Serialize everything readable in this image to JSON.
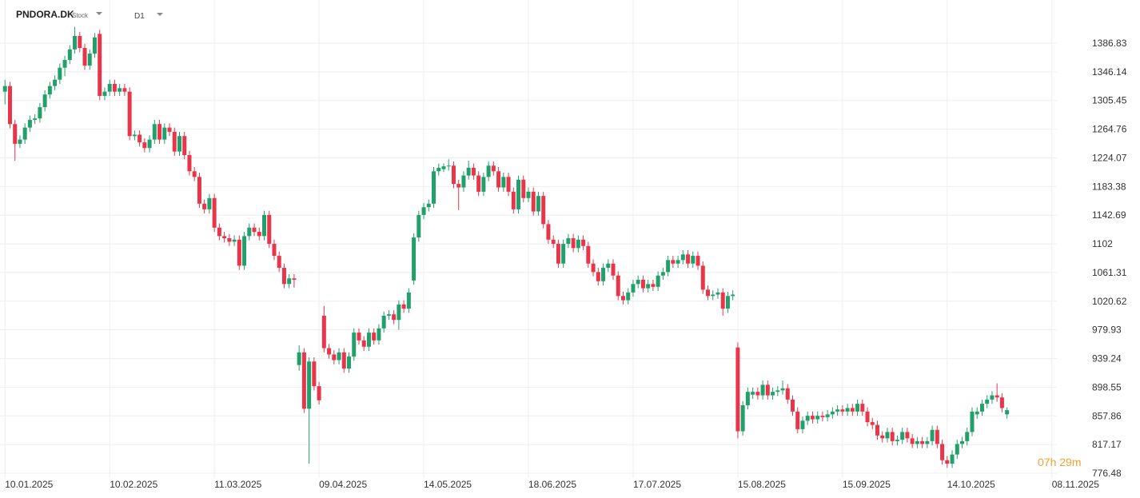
{
  "chart_data": {
    "type": "candlestick",
    "symbol": "PNDORA.DK",
    "instrument_type": "Stock",
    "timeframe": "D1",
    "countdown": "07h 29m",
    "up_color": "#22a06b",
    "down_color": "#e8354a",
    "grid": true,
    "xlim": [
      -1,
      211
    ],
    "xticks": [
      {
        "value": 0,
        "label": "10.01.2025"
      },
      {
        "value": 21,
        "label": "10.02.2025"
      },
      {
        "value": 42,
        "label": "11.03.2025"
      },
      {
        "value": 63,
        "label": "09.04.2025"
      },
      {
        "value": 84,
        "label": "14.05.2025"
      },
      {
        "value": 105,
        "label": "18.06.2025"
      },
      {
        "value": 126,
        "label": "17.07.2025"
      },
      {
        "value": 147,
        "label": "15.08.2025"
      },
      {
        "value": 168,
        "label": "15.09.2025"
      },
      {
        "value": 189,
        "label": "14.10.2025"
      },
      {
        "value": 210,
        "label": "08.11.2025"
      }
    ],
    "ylim": [
      769.67,
      1448.09
    ],
    "yticks": [
      776.48,
      817.17,
      857.86,
      898.55,
      939.24,
      979.93,
      1020.62,
      1061.31,
      1102.0,
      1142.69,
      1183.38,
      1224.07,
      1264.76,
      1305.45,
      1346.14,
      1386.83
    ],
    "candles": [
      [
        1318,
        1335,
        1300,
        1326
      ],
      [
        1326,
        1332,
        1266,
        1272
      ],
      [
        1272,
        1278,
        1220,
        1244
      ],
      [
        1244,
        1256,
        1238,
        1250
      ],
      [
        1250,
        1273,
        1244,
        1267
      ],
      [
        1267,
        1284,
        1261,
        1278
      ],
      [
        1278,
        1286,
        1272,
        1280
      ],
      [
        1280,
        1302,
        1274,
        1296
      ],
      [
        1296,
        1320,
        1290,
        1314
      ],
      [
        1314,
        1332,
        1308,
        1326
      ],
      [
        1326,
        1341,
        1320,
        1335
      ],
      [
        1335,
        1358,
        1329,
        1352
      ],
      [
        1352,
        1369,
        1340,
        1363
      ],
      [
        1363,
        1384,
        1357,
        1378
      ],
      [
        1378,
        1410,
        1372,
        1397
      ],
      [
        1397,
        1403,
        1374,
        1380
      ],
      [
        1380,
        1386,
        1349,
        1355
      ],
      [
        1355,
        1378,
        1349,
        1372
      ],
      [
        1372,
        1401,
        1366,
        1395
      ],
      [
        1400,
        1406,
        1306,
        1312
      ],
      [
        1312,
        1324,
        1306,
        1318
      ],
      [
        1318,
        1335,
        1312,
        1329
      ],
      [
        1329,
        1335,
        1312,
        1318
      ],
      [
        1318,
        1329,
        1312,
        1323
      ],
      [
        1323,
        1329,
        1312,
        1318
      ],
      [
        1318,
        1324,
        1249,
        1255
      ],
      [
        1255,
        1263,
        1249,
        1257
      ],
      [
        1257,
        1263,
        1240,
        1246
      ],
      [
        1246,
        1252,
        1232,
        1238
      ],
      [
        1238,
        1256,
        1232,
        1250
      ],
      [
        1250,
        1278,
        1244,
        1272
      ],
      [
        1272,
        1278,
        1244,
        1250
      ],
      [
        1250,
        1273,
        1244,
        1267
      ],
      [
        1267,
        1273,
        1255,
        1261
      ],
      [
        1261,
        1267,
        1227,
        1233
      ],
      [
        1233,
        1261,
        1227,
        1255
      ],
      [
        1255,
        1261,
        1222,
        1228
      ],
      [
        1228,
        1234,
        1199,
        1205
      ],
      [
        1205,
        1211,
        1191,
        1197
      ],
      [
        1197,
        1203,
        1153,
        1159
      ],
      [
        1159,
        1165,
        1145,
        1151
      ],
      [
        1151,
        1173,
        1145,
        1167
      ],
      [
        1167,
        1173,
        1119,
        1125
      ],
      [
        1125,
        1131,
        1107,
        1113
      ],
      [
        1113,
        1119,
        1104,
        1110
      ],
      [
        1110,
        1116,
        1099,
        1105
      ],
      [
        1105,
        1114,
        1099,
        1108
      ],
      [
        1108,
        1114,
        1065,
        1071
      ],
      [
        1071,
        1119,
        1065,
        1113
      ],
      [
        1113,
        1131,
        1107,
        1125
      ],
      [
        1125,
        1131,
        1113,
        1119
      ],
      [
        1119,
        1125,
        1107,
        1113
      ],
      [
        1113,
        1149,
        1107,
        1143
      ],
      [
        1143,
        1149,
        1096,
        1102
      ],
      [
        1102,
        1108,
        1079,
        1085
      ],
      [
        1085,
        1091,
        1062,
        1068
      ],
      [
        1068,
        1074,
        1039,
        1045
      ],
      [
        1045,
        1059,
        1039,
        1053
      ],
      [
        1053,
        1059,
        1040,
        1051
      ],
      [
        930,
        958,
        922,
        948
      ],
      [
        948,
        954,
        862,
        868
      ],
      [
        868,
        941,
        790,
        935
      ],
      [
        935,
        941,
        894,
        900
      ],
      [
        900,
        906,
        874,
        880
      ],
      [
        1000,
        1014,
        948,
        954
      ],
      [
        954,
        960,
        939,
        945
      ],
      [
        945,
        951,
        931,
        937
      ],
      [
        937,
        954,
        931,
        948
      ],
      [
        948,
        954,
        919,
        925
      ],
      [
        925,
        948,
        919,
        942
      ],
      [
        942,
        982,
        936,
        976
      ],
      [
        976,
        982,
        959,
        965
      ],
      [
        965,
        971,
        950,
        956
      ],
      [
        956,
        982,
        950,
        976
      ],
      [
        976,
        982,
        959,
        965
      ],
      [
        965,
        988,
        959,
        982
      ],
      [
        982,
        1006,
        976,
        1000
      ],
      [
        1000,
        1008,
        994,
        1002
      ],
      [
        1002,
        1008,
        988,
        994
      ],
      [
        994,
        1022,
        980,
        1016
      ],
      [
        1016,
        1022,
        1004,
        1010
      ],
      [
        1010,
        1039,
        1004,
        1033
      ],
      [
        1050,
        1117,
        1044,
        1111
      ],
      [
        1111,
        1149,
        1105,
        1143
      ],
      [
        1143,
        1160,
        1137,
        1154
      ],
      [
        1154,
        1165,
        1148,
        1159
      ],
      [
        1159,
        1211,
        1153,
        1205
      ],
      [
        1205,
        1216,
        1199,
        1210
      ],
      [
        1208,
        1216,
        1204,
        1212
      ],
      [
        1212,
        1222,
        1206,
        1213
      ],
      [
        1213,
        1219,
        1181,
        1187
      ],
      [
        1187,
        1193,
        1150,
        1182
      ],
      [
        1182,
        1205,
        1176,
        1199
      ],
      [
        1199,
        1220,
        1193,
        1210
      ],
      [
        1210,
        1216,
        1193,
        1199
      ],
      [
        1199,
        1205,
        1170,
        1176
      ],
      [
        1176,
        1203,
        1170,
        1197
      ],
      [
        1197,
        1219,
        1191,
        1213
      ],
      [
        1213,
        1219,
        1199,
        1205
      ],
      [
        1205,
        1211,
        1176,
        1182
      ],
      [
        1182,
        1203,
        1176,
        1197
      ],
      [
        1197,
        1203,
        1170,
        1176
      ],
      [
        1176,
        1182,
        1145,
        1151
      ],
      [
        1151,
        1199,
        1145,
        1193
      ],
      [
        1193,
        1199,
        1161,
        1167
      ],
      [
        1167,
        1182,
        1161,
        1176
      ],
      [
        1176,
        1182,
        1142,
        1148
      ],
      [
        1148,
        1176,
        1142,
        1170
      ],
      [
        1170,
        1176,
        1124,
        1130
      ],
      [
        1130,
        1136,
        1102,
        1108
      ],
      [
        1108,
        1114,
        1096,
        1102
      ],
      [
        1102,
        1108,
        1068,
        1074
      ],
      [
        1074,
        1108,
        1068,
        1102
      ],
      [
        1102,
        1116,
        1096,
        1110
      ],
      [
        1110,
        1116,
        1090,
        1096
      ],
      [
        1096,
        1114,
        1090,
        1108
      ],
      [
        1108,
        1114,
        1093,
        1099
      ],
      [
        1099,
        1105,
        1068,
        1074
      ],
      [
        1074,
        1080,
        1056,
        1062
      ],
      [
        1062,
        1068,
        1043,
        1049
      ],
      [
        1049,
        1074,
        1043,
        1068
      ],
      [
        1068,
        1080,
        1062,
        1074
      ],
      [
        1074,
        1080,
        1051,
        1057
      ],
      [
        1057,
        1063,
        1022,
        1028
      ],
      [
        1028,
        1034,
        1016,
        1022
      ],
      [
        1022,
        1039,
        1016,
        1033
      ],
      [
        1033,
        1051,
        1027,
        1045
      ],
      [
        1045,
        1057,
        1039,
        1051
      ],
      [
        1051,
        1057,
        1033,
        1039
      ],
      [
        1039,
        1051,
        1033,
        1045
      ],
      [
        1045,
        1051,
        1035,
        1041
      ],
      [
        1041,
        1063,
        1035,
        1057
      ],
      [
        1057,
        1068,
        1051,
        1062
      ],
      [
        1062,
        1085,
        1056,
        1079
      ],
      [
        1079,
        1085,
        1068,
        1074
      ],
      [
        1074,
        1085,
        1068,
        1079
      ],
      [
        1079,
        1093,
        1073,
        1087
      ],
      [
        1087,
        1093,
        1068,
        1074
      ],
      [
        1074,
        1091,
        1068,
        1085
      ],
      [
        1085,
        1091,
        1065,
        1071
      ],
      [
        1071,
        1077,
        1031,
        1037
      ],
      [
        1037,
        1043,
        1022,
        1028
      ],
      [
        1028,
        1036,
        1022,
        1030
      ],
      [
        1030,
        1039,
        1024,
        1033
      ],
      [
        1033,
        1039,
        1000,
        1010
      ],
      [
        1010,
        1034,
        1004,
        1028
      ],
      [
        1028,
        1036,
        1022,
        1030
      ],
      [
        955,
        962,
        826,
        836
      ],
      [
        836,
        879,
        830,
        873
      ],
      [
        873,
        898,
        867,
        892
      ],
      [
        888,
        898,
        882,
        892
      ],
      [
        892,
        898,
        881,
        887
      ],
      [
        887,
        908,
        881,
        902
      ],
      [
        902,
        908,
        881,
        887
      ],
      [
        887,
        898,
        881,
        892
      ],
      [
        892,
        900,
        886,
        894
      ],
      [
        894,
        908,
        888,
        897
      ],
      [
        897,
        903,
        875,
        881
      ],
      [
        881,
        887,
        858,
        864
      ],
      [
        864,
        870,
        833,
        839
      ],
      [
        839,
        857,
        833,
        851
      ],
      [
        851,
        864,
        845,
        858
      ],
      [
        858,
        864,
        847,
        853
      ],
      [
        853,
        864,
        847,
        858
      ],
      [
        858,
        864,
        850,
        856
      ],
      [
        856,
        866,
        850,
        860
      ],
      [
        860,
        870,
        854,
        864
      ],
      [
        864,
        873,
        858,
        867
      ],
      [
        867,
        873,
        858,
        864
      ],
      [
        864,
        875,
        858,
        869
      ],
      [
        869,
        875,
        858,
        864
      ],
      [
        864,
        881,
        858,
        875
      ],
      [
        875,
        881,
        858,
        864
      ],
      [
        864,
        870,
        843,
        849
      ],
      [
        849,
        855,
        839,
        845
      ],
      [
        845,
        851,
        824,
        830
      ],
      [
        830,
        836,
        820,
        826
      ],
      [
        826,
        841,
        820,
        835
      ],
      [
        835,
        841,
        816,
        822
      ],
      [
        822,
        830,
        816,
        824
      ],
      [
        824,
        841,
        818,
        835
      ],
      [
        835,
        841,
        820,
        826
      ],
      [
        826,
        832,
        812,
        818
      ],
      [
        818,
        828,
        812,
        822
      ],
      [
        822,
        828,
        812,
        818
      ],
      [
        818,
        828,
        812,
        822
      ],
      [
        822,
        844,
        816,
        838
      ],
      [
        838,
        844,
        812,
        818
      ],
      [
        818,
        824,
        789,
        795
      ],
      [
        795,
        801,
        784,
        790
      ],
      [
        790,
        809,
        784,
        803
      ],
      [
        803,
        824,
        797,
        818
      ],
      [
        818,
        828,
        812,
        822
      ],
      [
        822,
        841,
        816,
        835
      ],
      [
        835,
        870,
        829,
        864
      ],
      [
        860,
        870,
        854,
        864
      ],
      [
        864,
        881,
        858,
        875
      ],
      [
        875,
        887,
        869,
        881
      ],
      [
        881,
        893,
        875,
        887
      ],
      [
        887,
        904,
        878,
        884
      ],
      [
        884,
        890,
        863,
        869
      ],
      [
        860,
        870,
        854,
        866
      ]
    ]
  }
}
